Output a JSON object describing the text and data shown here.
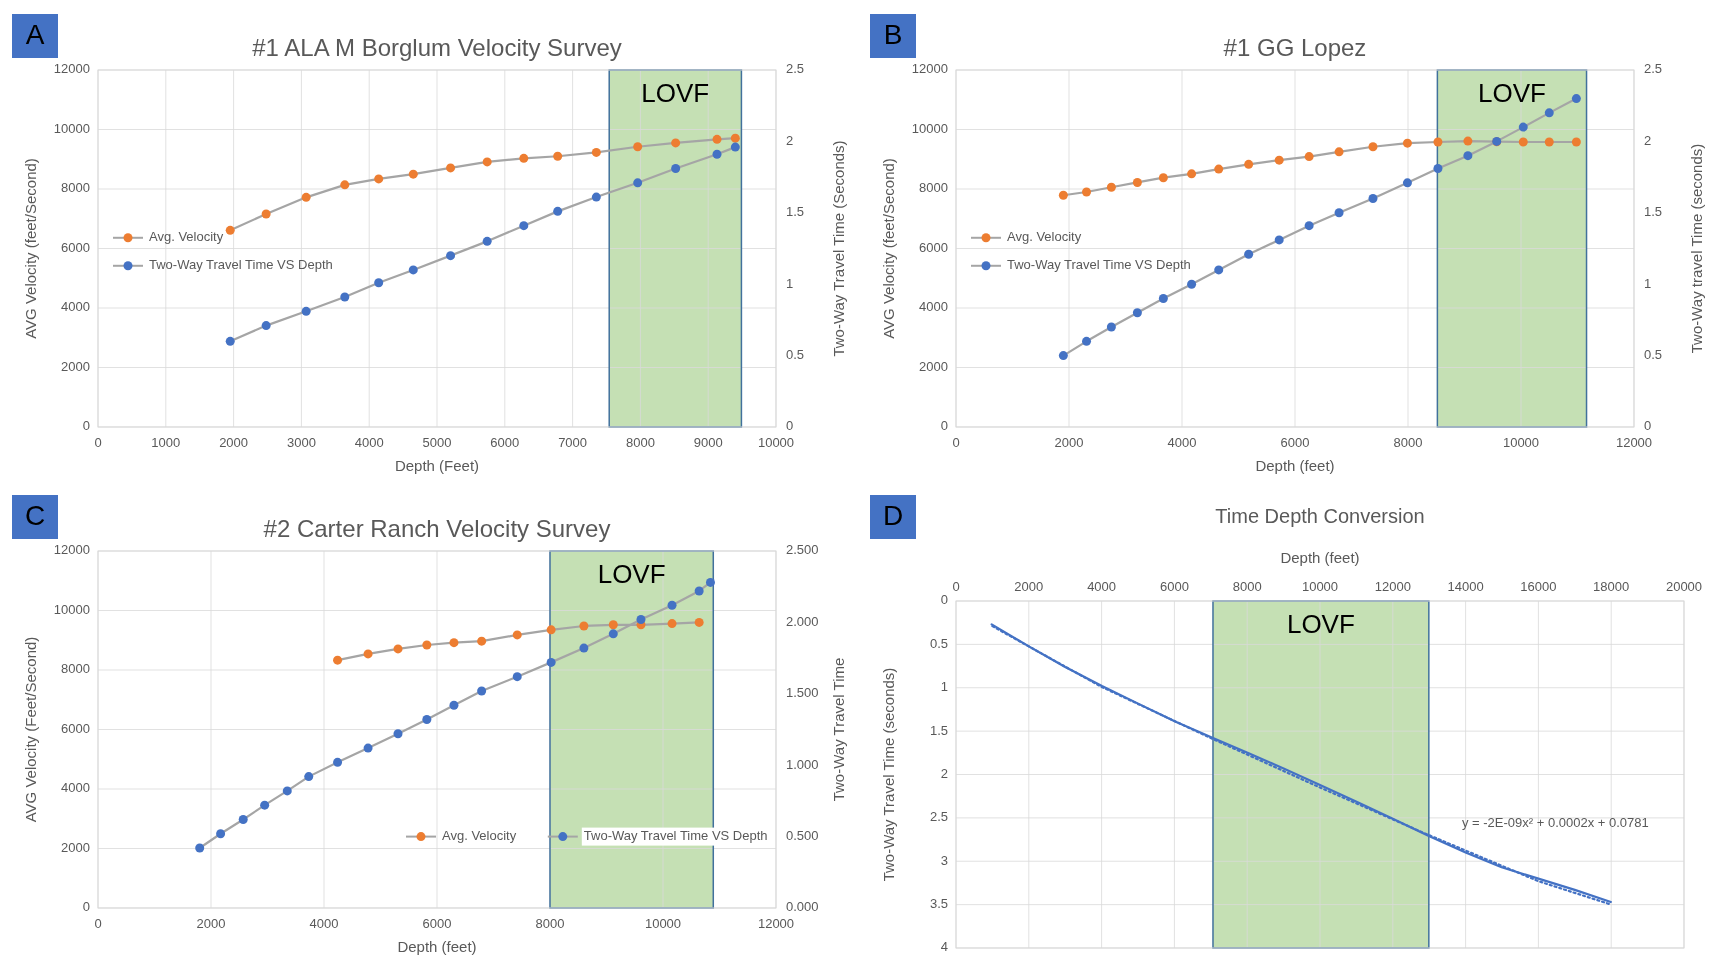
{
  "chart_data": [
    {
      "type": "line",
      "title": "#1 ALA M Borglum Velocity Survey",
      "xlabel": "Depth (Feet)",
      "ylabel": "AVG Velocity (feet/Second)",
      "y2label": "Two-Way Travel Time (Seconds)",
      "annotations": [
        "A"
      ],
      "xlim": [
        0,
        10000
      ],
      "xticks": [
        0,
        1000,
        2000,
        3000,
        4000,
        5000,
        6000,
        7000,
        8000,
        9000,
        10000
      ],
      "ylim": [
        0,
        12000
      ],
      "yticks": [
        0,
        2000,
        4000,
        6000,
        8000,
        10000,
        12000
      ],
      "y2lim": [
        0,
        2.5
      ],
      "y2ticks": [
        0,
        0.5,
        1,
        1.5,
        2,
        2.5
      ],
      "grid": true,
      "legend": "left",
      "marker": "circle",
      "bands": [
        {
          "axis": "x",
          "from": 7540,
          "to": 9490,
          "label": "LOVF",
          "color": "#c5e0b4"
        }
      ],
      "series": [
        {
          "name": "Avg. Velocity",
          "color": "#ed7d31",
          "x": [
            1950,
            2480,
            3070,
            3640,
            4140,
            4650,
            5200,
            5740,
            6280,
            6780,
            7350,
            7960,
            8520,
            9130,
            9400
          ],
          "values": [
            6610,
            7160,
            7720,
            8140,
            8340,
            8500,
            8710,
            8910,
            9030,
            9100,
            9230,
            9420,
            9550,
            9670,
            9710
          ]
        },
        {
          "name": "Two-Way Travel Time VS Depth",
          "color": "#4472c4",
          "axis": "y2",
          "x": [
            1950,
            2480,
            3070,
            3640,
            4140,
            4650,
            5200,
            5740,
            6280,
            6780,
            7350,
            7960,
            8520,
            9130,
            9400
          ],
          "values": [
            0.6,
            0.71,
            0.81,
            0.91,
            1.01,
            1.1,
            1.2,
            1.3,
            1.41,
            1.51,
            1.61,
            1.71,
            1.81,
            1.91,
            1.96
          ]
        }
      ]
    },
    {
      "type": "line",
      "title": "#1 GG Lopez",
      "xlabel": "Depth (feet)",
      "ylabel": "AVG Velocity (feet/Second)",
      "y2label": "Two-Way travel Time (seconds)",
      "annotations": [
        "B"
      ],
      "xlim": [
        0,
        12000
      ],
      "xticks": [
        0,
        2000,
        4000,
        6000,
        8000,
        10000,
        12000
      ],
      "ylim": [
        0,
        12000
      ],
      "yticks": [
        0,
        2000,
        4000,
        6000,
        8000,
        10000,
        12000
      ],
      "y2lim": [
        0,
        2.5
      ],
      "y2ticks": [
        0,
        0.5,
        1,
        1.5,
        2,
        2.5
      ],
      "grid": true,
      "legend": "left",
      "marker": "circle",
      "bands": [
        {
          "axis": "x",
          "from": 8520,
          "to": 11160,
          "label": "LOVF",
          "color": "#c5e0b4"
        }
      ],
      "series": [
        {
          "name": "Avg. Velocity",
          "color": "#ed7d31",
          "x": [
            1900,
            2310,
            2750,
            3210,
            3670,
            4170,
            4650,
            5180,
            5720,
            6250,
            6780,
            7380,
            7990,
            8530,
            9060,
            9570,
            10040,
            10500,
            10980
          ],
          "values": [
            7790,
            7900,
            8060,
            8220,
            8380,
            8510,
            8670,
            8830,
            8970,
            9090,
            9250,
            9420,
            9540,
            9580,
            9610,
            9590,
            9580,
            9580,
            9580
          ]
        },
        {
          "name": "Two-Way Travel Time VS Depth",
          "color": "#4472c4",
          "axis": "y2",
          "x": [
            1900,
            2310,
            2750,
            3210,
            3670,
            4170,
            4650,
            5180,
            5720,
            6250,
            6780,
            7380,
            7990,
            8530,
            9060,
            9570,
            10040,
            10500,
            10980
          ],
          "values": [
            0.5,
            0.6,
            0.7,
            0.8,
            0.9,
            1.0,
            1.1,
            1.21,
            1.31,
            1.41,
            1.5,
            1.6,
            1.71,
            1.81,
            1.9,
            2.0,
            2.1,
            2.2,
            2.3
          ]
        }
      ]
    },
    {
      "type": "line",
      "title": "#2 Carter Ranch Velocity Survey",
      "xlabel": "Depth (feet)",
      "ylabel": "AVG Velocity (Feet/Second)",
      "y2label": "Two-Way Travel Time",
      "annotations": [
        "C"
      ],
      "xlim": [
        0,
        12000
      ],
      "xticks": [
        0,
        2000,
        4000,
        6000,
        8000,
        10000,
        12000
      ],
      "ylim": [
        0,
        12000
      ],
      "yticks": [
        0,
        2000,
        4000,
        6000,
        8000,
        10000,
        12000
      ],
      "y2lim": [
        0,
        2.5
      ],
      "y2ticks": [
        {
          "value": 0,
          "label": "0.000"
        },
        {
          "value": 0.5,
          "label": "0.500"
        },
        {
          "value": 1,
          "label": "1.000"
        },
        {
          "value": 1.5,
          "label": "1.500"
        },
        {
          "value": 2,
          "label": "2.000"
        },
        {
          "value": 2.5,
          "label": "2.500"
        }
      ],
      "grid": true,
      "legend": "bottom right",
      "marker": "circle",
      "bands": [
        {
          "axis": "x",
          "from": 8000,
          "to": 10890,
          "label": "LOVF",
          "color": "#c5e0b4"
        }
      ],
      "series": [
        {
          "name": "Avg. Velocity",
          "color": "#ed7d31",
          "x": [
            4240,
            4780,
            5310,
            5820,
            6300,
            6790,
            7420,
            8020,
            8600,
            9120,
            9610,
            10160,
            10640
          ],
          "values": [
            8330,
            8540,
            8710,
            8840,
            8920,
            8970,
            9180,
            9350,
            9480,
            9520,
            9520,
            9560,
            9600
          ]
        },
        {
          "name": "Two-Way Travel Time VS Depth",
          "color": "#4472c4",
          "axis": "y2",
          "x": [
            1800,
            2170,
            2570,
            2950,
            3350,
            3730,
            4240,
            4780,
            5310,
            5820,
            6300,
            6790,
            7420,
            8020,
            8600,
            9120,
            9610,
            10160,
            10640,
            10840
          ],
          "values": [
            0.42,
            0.52,
            0.62,
            0.72,
            0.82,
            0.92,
            1.02,
            1.12,
            1.22,
            1.32,
            1.42,
            1.52,
            1.62,
            1.72,
            1.82,
            1.92,
            2.02,
            2.12,
            2.22,
            2.28
          ]
        }
      ]
    },
    {
      "type": "line",
      "title": "Time Depth Conversion",
      "xlabel": "Depth (feet)",
      "ylabel": "Two-Way Travel Time (seconds)",
      "annotations": [
        "D",
        "y = -2E-09x² + 0.0002x + 0.0781"
      ],
      "xlim": [
        0,
        20000
      ],
      "xticks": [
        0,
        2000,
        4000,
        6000,
        8000,
        10000,
        12000,
        14000,
        16000,
        18000,
        20000
      ],
      "ylim": [
        4,
        0
      ],
      "yticks": [
        0,
        0.5,
        1,
        1.5,
        2,
        2.5,
        3,
        3.5,
        4
      ],
      "grid": true,
      "marker": "none",
      "bands": [
        {
          "axis": "x",
          "from": 7060,
          "to": 12990,
          "label": "LOVF",
          "color": "#c5e0b4"
        }
      ],
      "series": [
        {
          "color": "#4472c4",
          "x": [
            980,
            1990,
            3000,
            4010,
            4990,
            6020,
            7060,
            8010,
            9000,
            10000,
            10990,
            12000,
            12990,
            14000,
            14990,
            16000,
            17000,
            17990
          ],
          "values": [
            0.27,
            0.52,
            0.76,
            0.98,
            1.18,
            1.39,
            1.58,
            1.75,
            1.93,
            2.12,
            2.31,
            2.51,
            2.71,
            2.9,
            3.07,
            3.2,
            3.33,
            3.47
          ]
        },
        {
          "color": "#4472c4",
          "line_style": "dotted",
          "x": [
            1000,
            4000,
            7000,
            10000,
            13000,
            16000,
            18000
          ],
          "values": [
            0.29,
            0.99,
            1.58,
            2.15,
            2.7,
            3.23,
            3.5
          ]
        }
      ]
    }
  ]
}
